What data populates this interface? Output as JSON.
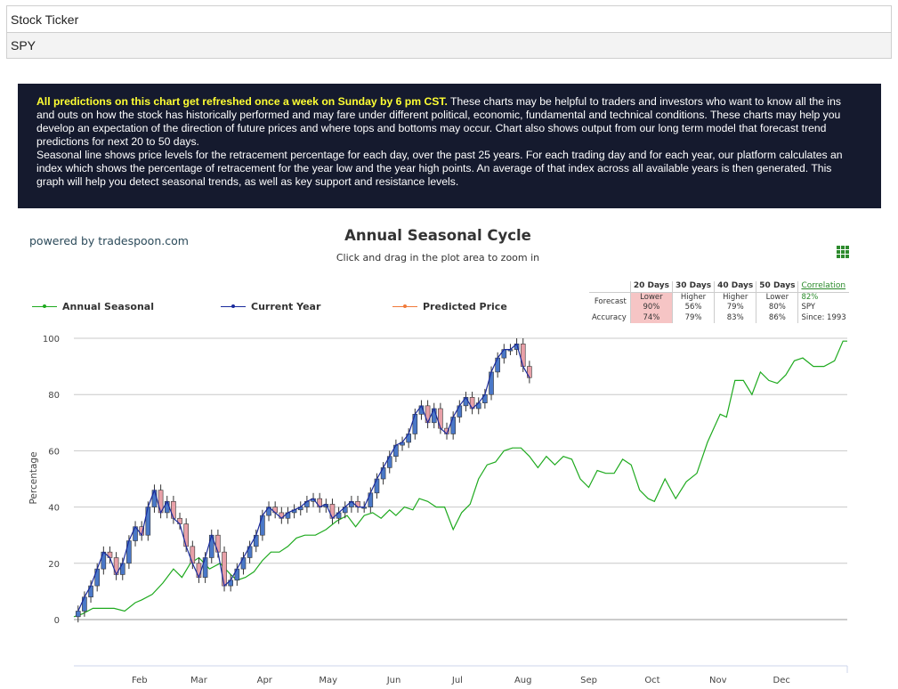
{
  "form": {
    "label": "Stock Ticker",
    "value": "SPY"
  },
  "info": {
    "highlight": "All predictions on this chart get refreshed once a week on Sunday by 6 pm CST.",
    "text1": " These charts may be helpful to traders and investors who want to know all the ins and outs on how the stock has historically performed and may fare under different political, economic, fundamental and technical conditions. These charts may help you develop an expectation of the direction of future prices and where tops and bottoms may occur. Chart also shows output from our long term model that forecast trend predictions for next 20 to 50 days.",
    "text2": "Seasonal line shows price levels for the retracement percentage for each day, over the past 25 years. For each trading day and for each year, our platform calculates an index which shows the percentage of retracement for the year low and the year high points. An average of that index across all available years is then generated. This graph will help you detect seasonal trends, as well as key support and resistance levels."
  },
  "powered_by": "powered by tradespoon.com",
  "menu_icon": "grid-menu-icon",
  "forecast": {
    "headers": [
      "20 Days",
      "30 Days",
      "40 Days",
      "50 Days"
    ],
    "forecast_label": "Forecast",
    "accuracy_label": "Accuracy",
    "directions": [
      "Lower",
      "Higher",
      "Higher",
      "Lower"
    ],
    "probabilities": [
      "90%",
      "56%",
      "79%",
      "80%"
    ],
    "accuracy": [
      "74%",
      "79%",
      "83%",
      "86%"
    ],
    "highlight_column": 0,
    "correlation_label": "Correlation",
    "correlation_value": "82%",
    "ticker": "SPY",
    "since": "Since: 1993"
  },
  "colors": {
    "seasonal": "#1faa1f",
    "current": "#1a2a9c",
    "predicted": "#f07a3a",
    "candle_down": "#e8a0a8",
    "candle_up": "#4a78c8",
    "grid": "#c8c8c8"
  },
  "chart_data": {
    "type": "line",
    "title": "Annual Seasonal Cycle",
    "subtitle": "Click and drag in the plot area to zoom in",
    "xlabel": "",
    "ylabel": "Percentage",
    "ylim": [
      0,
      100
    ],
    "yticks": [
      0,
      20,
      40,
      60,
      80,
      100
    ],
    "x_categories": [
      "Feb",
      "Mar",
      "Apr",
      "May",
      "Jun",
      "Jul",
      "Aug",
      "Sep",
      "Oct",
      "Nov",
      "Dec"
    ],
    "x_unit": "day of year",
    "xlim": [
      1,
      366
    ],
    "month_ticks": [
      32,
      60,
      91,
      121,
      152,
      182,
      213,
      244,
      274,
      305,
      335
    ],
    "grid": true,
    "legend_position": "top-left",
    "series": [
      {
        "name": "Annual Seasonal",
        "x": [
          1,
          5,
          10,
          15,
          20,
          25,
          30,
          33,
          38,
          43,
          48,
          52,
          56,
          60,
          65,
          70,
          75,
          78,
          82,
          86,
          90,
          94,
          98,
          102,
          106,
          110,
          115,
          120,
          125,
          130,
          134,
          138,
          142,
          146,
          150,
          153,
          157,
          161,
          164,
          168,
          172,
          176,
          180,
          184,
          188,
          192,
          196,
          200,
          204,
          208,
          212,
          216,
          220,
          224,
          228,
          232,
          236,
          240,
          244,
          248,
          252,
          256,
          260,
          264,
          268,
          272,
          275,
          280,
          285,
          290,
          295,
          300,
          303,
          306,
          309,
          313,
          317,
          321,
          325,
          329,
          333,
          337,
          341,
          345,
          350,
          355,
          360,
          364,
          366
        ],
        "y": [
          1,
          2,
          4,
          4,
          4,
          3,
          6,
          7,
          9,
          13,
          18,
          15,
          20,
          22,
          18,
          20,
          16,
          14,
          15,
          17,
          21,
          24,
          24,
          26,
          29,
          30,
          30,
          32,
          35,
          37,
          33,
          37,
          38,
          36,
          39,
          37,
          40,
          39,
          43,
          42,
          40,
          40,
          32,
          38,
          41,
          50,
          55,
          56,
          60,
          61,
          61,
          58,
          54,
          58,
          55,
          58,
          57,
          50,
          47,
          53,
          52,
          52,
          57,
          55,
          46,
          43,
          42,
          50,
          43,
          49,
          52,
          63,
          68,
          73,
          72,
          85,
          85,
          80,
          88,
          85,
          84,
          87,
          92,
          93,
          90,
          90,
          92,
          99,
          99
        ]
      },
      {
        "name": "Current Year",
        "x": [
          3,
          6,
          9,
          12,
          15,
          18,
          21,
          24,
          27,
          30,
          33,
          36,
          39,
          42,
          45,
          48,
          51,
          54,
          57,
          60,
          63,
          66,
          69,
          72,
          75,
          78,
          81,
          84,
          87,
          90,
          93,
          96,
          99,
          102,
          105,
          108,
          111,
          114,
          117,
          120,
          123,
          126,
          129,
          132,
          135,
          138,
          141,
          144,
          147,
          150,
          153,
          156,
          159,
          162,
          165,
          168,
          171,
          174,
          177,
          180,
          183,
          186,
          189,
          192,
          195,
          198,
          201,
          204,
          207,
          210,
          213,
          216
        ],
        "y": [
          3,
          8,
          12,
          18,
          24,
          22,
          16,
          20,
          28,
          33,
          30,
          40,
          46,
          38,
          42,
          36,
          34,
          26,
          20,
          15,
          22,
          30,
          24,
          12,
          14,
          18,
          22,
          26,
          30,
          37,
          40,
          38,
          36,
          38,
          39,
          40,
          42,
          43,
          40,
          41,
          36,
          38,
          40,
          42,
          40,
          40,
          45,
          50,
          54,
          58,
          62,
          63,
          66,
          73,
          76,
          70,
          75,
          68,
          66,
          72,
          76,
          79,
          75,
          77,
          80,
          88,
          93,
          96,
          96,
          98,
          90,
          86
        ]
      },
      {
        "name": "Predicted Price",
        "x": [],
        "y": []
      }
    ]
  }
}
